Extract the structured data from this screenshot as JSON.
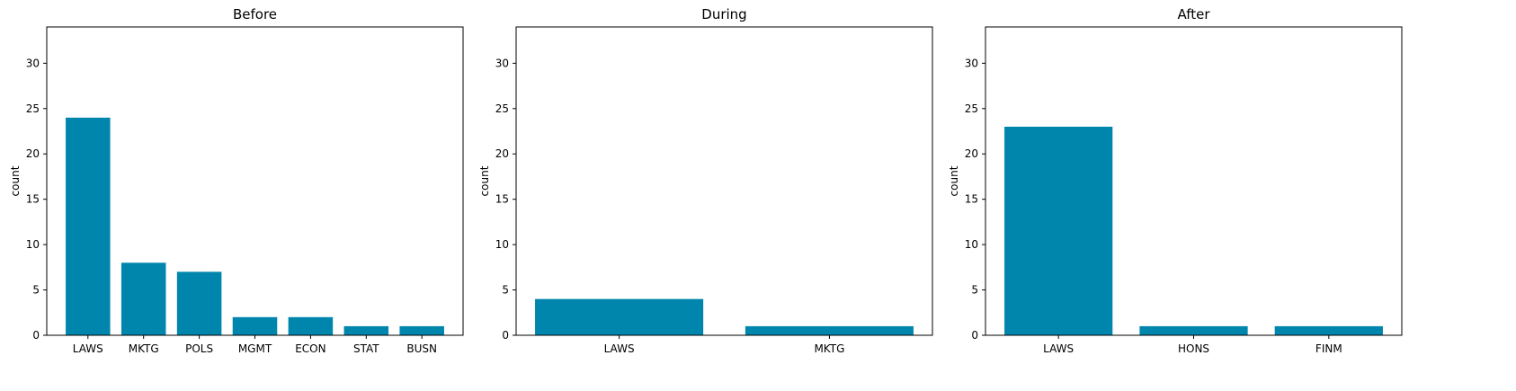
{
  "chart_data": [
    {
      "type": "bar",
      "title": "Before",
      "ylabel": "count",
      "categories": [
        "LAWS",
        "MKTG",
        "POLS",
        "MGMT",
        "ECON",
        "STAT",
        "BUSN"
      ],
      "values": [
        24,
        8,
        7,
        2,
        2,
        1,
        1
      ],
      "ylim": [
        0,
        34
      ],
      "yticks": [
        0,
        5,
        10,
        15,
        20,
        25,
        30
      ],
      "grid": false,
      "color": "#0086ad"
    },
    {
      "type": "bar",
      "title": "During",
      "ylabel": "count",
      "categories": [
        "LAWS",
        "MKTG"
      ],
      "values": [
        4,
        1
      ],
      "ylim": [
        0,
        34
      ],
      "yticks": [
        0,
        5,
        10,
        15,
        20,
        25,
        30
      ],
      "grid": false,
      "color": "#0086ad"
    },
    {
      "type": "bar",
      "title": "After",
      "ylabel": "count",
      "categories": [
        "LAWS",
        "HONS",
        "FINM"
      ],
      "values": [
        23,
        1,
        1
      ],
      "ylim": [
        0,
        34
      ],
      "yticks": [
        0,
        5,
        10,
        15,
        20,
        25,
        30
      ],
      "grid": false,
      "color": "#0086ad"
    }
  ]
}
